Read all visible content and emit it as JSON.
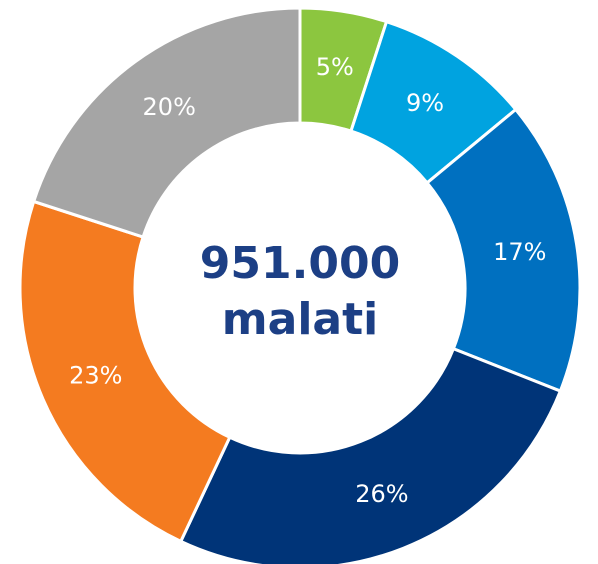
{
  "chart_data": {
    "type": "donut",
    "values": [
      5,
      9,
      17,
      26,
      23,
      20
    ],
    "value_labels": [
      "5%",
      "9%",
      "17%",
      "26%",
      "23%",
      "20%"
    ],
    "colors": [
      "#8cc63f",
      "#00a3e0",
      "#0070c0",
      "#003478",
      "#f47b20",
      "#a5a5a5"
    ],
    "annotations": [
      "951.000",
      "malati"
    ]
  }
}
